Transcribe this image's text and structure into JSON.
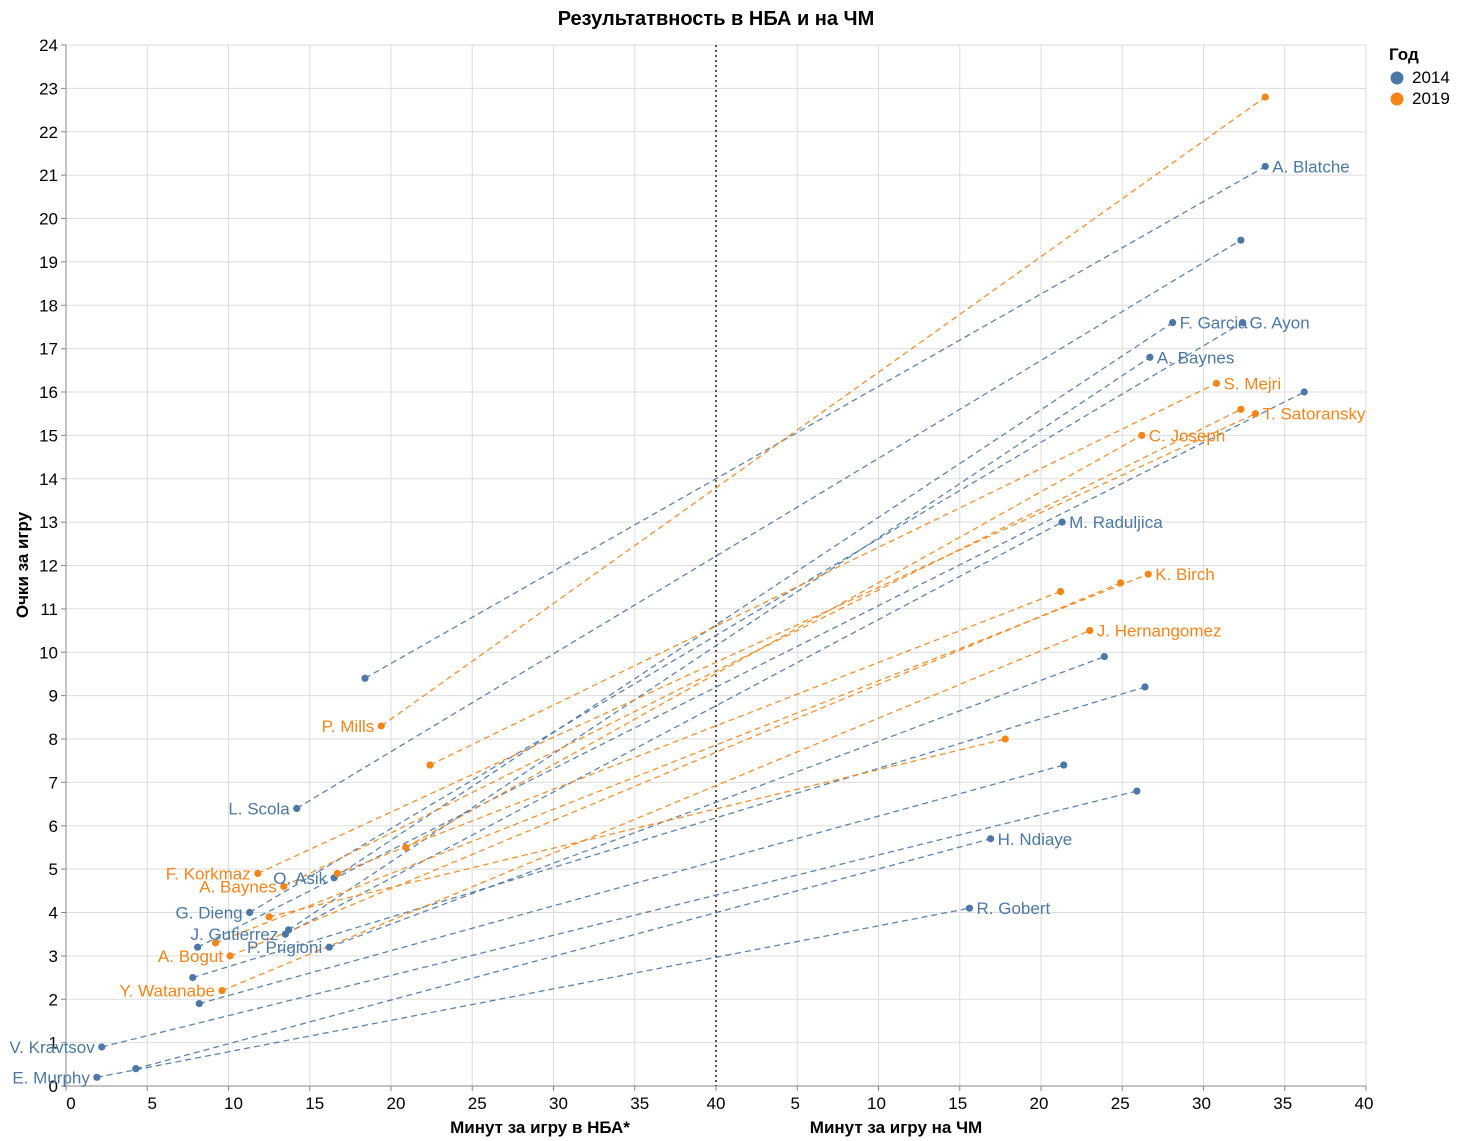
{
  "colors": {
    "2014": "#4c78a8",
    "2019": "#f58518",
    "grid": "#dddddd",
    "divider": "#555555"
  },
  "chart_data": {
    "type": "scatter",
    "title": "Результатвность в НБА и на ЧМ",
    "ylabel": "Очки за игру",
    "xlabel_left": "Минут за игру в НБА*",
    "xlabel_right": "Минут за игру на ЧМ",
    "ylim": [
      0,
      24
    ],
    "xlim_left": [
      0,
      40
    ],
    "xlim_right": [
      0,
      40
    ],
    "y_ticks": [
      0,
      1,
      2,
      3,
      4,
      5,
      6,
      7,
      8,
      9,
      10,
      11,
      12,
      13,
      14,
      15,
      16,
      17,
      18,
      19,
      20,
      21,
      22,
      23,
      24
    ],
    "x_ticks_left": [
      0,
      5,
      10,
      15,
      20,
      25,
      30,
      35,
      40
    ],
    "x_ticks_right": [
      5,
      10,
      15,
      20,
      25,
      30,
      35,
      40
    ],
    "divider_label": "40",
    "legend": {
      "title": "Год",
      "entries": [
        "2014",
        "2019"
      ]
    },
    "pairs": [
      {
        "year": "2014",
        "nba": [
          18.4,
          9.4
        ],
        "wc": [
          33.8,
          21.2
        ],
        "label_nba": "",
        "label_wc": "A. Blatche"
      },
      {
        "year": "2014",
        "nba": [
          14.2,
          6.4
        ],
        "wc": [
          32.3,
          19.5
        ],
        "label_nba": "L. Scola",
        "label_wc": ""
      },
      {
        "year": "2014",
        "nba": [
          16.5,
          4.8
        ],
        "wc": [
          28.1,
          17.6
        ],
        "label_nba": "O. Asik",
        "label_wc": "F. Garcia"
      },
      {
        "year": "2014",
        "nba": [
          11.3,
          4.0
        ],
        "wc": [
          32.4,
          17.6
        ],
        "label_nba": "G. Dieng",
        "label_wc": "G. Ayon"
      },
      {
        "year": "2014",
        "nba": [
          13.7,
          3.6
        ],
        "wc": [
          26.7,
          16.8
        ],
        "label_nba": "",
        "label_wc": "A. Baynes"
      },
      {
        "year": "2014",
        "nba": [
          8.1,
          3.2
        ],
        "wc": [
          36.2,
          16.0
        ],
        "label_nba": "",
        "label_wc": ""
      },
      {
        "year": "2014",
        "nba": [
          13.5,
          3.5
        ],
        "wc": [
          21.3,
          13.0
        ],
        "label_nba": "J. Gutierrez",
        "label_wc": "M. Raduljica"
      },
      {
        "year": "2014",
        "nba": [
          16.2,
          3.2
        ],
        "wc": [
          23.9,
          9.9
        ],
        "label_nba": "P. Prigioni",
        "label_wc": ""
      },
      {
        "year": "2014",
        "nba": [
          7.8,
          2.5
        ],
        "wc": [
          26.4,
          9.2
        ],
        "label_nba": "",
        "label_wc": ""
      },
      {
        "year": "2014",
        "nba": [
          8.2,
          1.9
        ],
        "wc": [
          21.4,
          7.4
        ],
        "label_nba": "",
        "label_wc": ""
      },
      {
        "year": "2014",
        "nba": [
          2.2,
          0.9
        ],
        "wc": [
          25.9,
          6.8
        ],
        "label_nba": "V. Kravtsov",
        "label_wc": ""
      },
      {
        "year": "2014",
        "nba": [
          4.3,
          0.4
        ],
        "wc": [
          16.9,
          5.7
        ],
        "label_nba": "",
        "label_wc": "H. Ndiaye"
      },
      {
        "year": "2014",
        "nba": [
          1.9,
          0.2
        ],
        "wc": [
          15.6,
          4.1
        ],
        "label_nba": "E. Murphy",
        "label_wc": "R. Gobert"
      },
      {
        "year": "2019",
        "nba": [
          19.4,
          8.3
        ],
        "wc": [
          33.8,
          22.8
        ],
        "label_nba": "P. Mills",
        "label_wc": ""
      },
      {
        "year": "2019",
        "nba": [
          22.4,
          7.4
        ],
        "wc": [
          30.8,
          16.2
        ],
        "label_nba": "",
        "label_wc": "S. Mejri"
      },
      {
        "year": "2019",
        "nba": [
          11.8,
          4.9
        ],
        "wc": [
          33.2,
          15.5
        ],
        "label_nba": "F. Korkmaz",
        "label_wc": "T. Satoransky"
      },
      {
        "year": "2019",
        "nba": [
          13.4,
          4.6
        ],
        "wc": [
          32.3,
          15.6
        ],
        "label_nba": "A. Baynes",
        "label_wc": ""
      },
      {
        "year": "2019",
        "nba": [
          20.9,
          5.5
        ],
        "wc": [
          26.2,
          15.0
        ],
        "label_nba": "",
        "label_wc": "C. Joseph"
      },
      {
        "year": "2019",
        "nba": [
          9.2,
          3.3
        ],
        "wc": [
          26.6,
          11.8
        ],
        "label_nba": "",
        "label_wc": "K. Birch"
      },
      {
        "year": "2019",
        "nba": [
          10.1,
          3.0
        ],
        "wc": [
          24.9,
          11.6
        ],
        "label_nba": "A. Bogut",
        "label_wc": ""
      },
      {
        "year": "2019",
        "nba": [
          16.7,
          4.9
        ],
        "wc": [
          21.2,
          11.4
        ],
        "label_nba": "",
        "label_wc": ""
      },
      {
        "year": "2019",
        "nba": [
          9.6,
          2.2
        ],
        "wc": [
          23.0,
          10.5
        ],
        "label_nba": "Y. Watanabe",
        "label_wc": "J. Hernangomez"
      },
      {
        "year": "2019",
        "nba": [
          12.5,
          3.9
        ],
        "wc": [
          17.8,
          8.0
        ],
        "label_nba": "",
        "label_wc": ""
      }
    ]
  }
}
